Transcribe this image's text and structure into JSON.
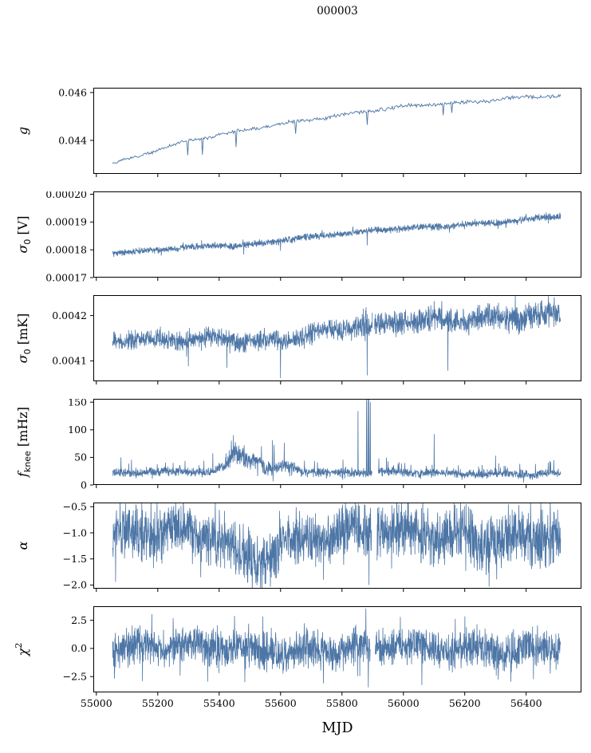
{
  "title": "000003",
  "chart_data": {
    "type": "line",
    "title": "000003",
    "xlabel": "MJD",
    "grid": false,
    "legend": "none",
    "line_color": "#4d76a6",
    "axis_color": "#000000",
    "background": "#ffffff",
    "x_range": [
      54990,
      56580
    ],
    "x_data_range": [
      55053,
      56512
    ],
    "x_ticks": {
      "values": [
        55000,
        55200,
        55400,
        55600,
        55800,
        56000,
        56200,
        56400
      ],
      "labels": [
        "55000",
        "55200",
        "55400",
        "55600",
        "55800",
        "56000",
        "56200",
        "56400"
      ]
    },
    "panels": [
      {
        "name": "g",
        "ylabel": [
          {
            "t": "g",
            "i": 1
          }
        ],
        "ylabel_text": "g",
        "style": "line",
        "seed": 11,
        "ylim": [
          0.0426,
          0.0462
        ],
        "yticks": {
          "values": [
            0.044,
            0.046
          ],
          "labels": [
            "0.044",
            "0.046"
          ]
        },
        "noise": 7e-05,
        "center": [
          [
            55053,
            0.043
          ],
          [
            55120,
            0.04325
          ],
          [
            55200,
            0.0436
          ],
          [
            55300,
            0.04395
          ],
          [
            55400,
            0.04425
          ],
          [
            55500,
            0.0445
          ],
          [
            55600,
            0.04471
          ],
          [
            55700,
            0.04488
          ],
          [
            55800,
            0.04504
          ],
          [
            55900,
            0.04522
          ],
          [
            56000,
            0.0454
          ],
          [
            56100,
            0.04552
          ],
          [
            56200,
            0.04561
          ],
          [
            56300,
            0.04572
          ],
          [
            56400,
            0.04582
          ],
          [
            56512,
            0.04585
          ]
        ],
        "spread": [
          [
            55053,
            7e-05
          ],
          [
            56512,
            7e-05
          ]
        ],
        "spikes": [
          [
            55298,
            0.04338
          ],
          [
            55345,
            0.0434
          ],
          [
            55455,
            0.04372
          ],
          [
            55648,
            0.04428
          ],
          [
            55882,
            0.04465
          ],
          [
            56130,
            0.04505
          ],
          [
            56158,
            0.04515
          ]
        ],
        "gaps": []
      },
      {
        "name": "sigma0-V",
        "ylabel": [
          {
            "t": "σ",
            "i": 1
          },
          {
            "t": "0",
            "sub": 1
          },
          {
            "t": " [V]"
          }
        ],
        "ylabel_text": "σ0 [V]",
        "style": "band",
        "seed": 22,
        "ylim": [
          0.00017,
          0.000201
        ],
        "yticks": {
          "values": [
            0.00017,
            0.00018,
            0.00019,
            0.0002
          ],
          "labels": [
            "0.00017",
            "0.00018",
            "0.00019",
            "0.00020"
          ]
        },
        "center": [
          [
            55053,
            0.0001786
          ],
          [
            55150,
            0.0001794
          ],
          [
            55250,
            0.0001803
          ],
          [
            55350,
            0.0001812
          ],
          [
            55418,
            0.0001818
          ],
          [
            55435,
            0.0001811
          ],
          [
            55500,
            0.000182
          ],
          [
            55560,
            0.0001829
          ],
          [
            55620,
            0.0001838
          ],
          [
            55680,
            0.0001845
          ],
          [
            55740,
            0.0001852
          ],
          [
            55800,
            0.0001857
          ],
          [
            55860,
            0.0001862
          ],
          [
            55900,
            0.0001868
          ],
          [
            55960,
            0.0001872
          ],
          [
            56020,
            0.0001877
          ],
          [
            56080,
            0.0001882
          ],
          [
            56140,
            0.0001886
          ],
          [
            56200,
            0.0001892
          ],
          [
            56260,
            0.0001897
          ],
          [
            56320,
            0.0001902
          ],
          [
            56380,
            0.0001908
          ],
          [
            56440,
            0.0001914
          ],
          [
            56512,
            0.0001921
          ]
        ],
        "spread": [
          [
            55053,
            1.2e-06
          ],
          [
            56512,
            1.3e-06
          ]
        ],
        "spikes": [
          [
            55480,
            0.0001783
          ],
          [
            55600,
            0.0001797
          ],
          [
            55882,
            0.0001816
          ],
          [
            56150,
            0.0001862
          ]
        ],
        "gaps": []
      },
      {
        "name": "sigma0-mK",
        "ylabel": [
          {
            "t": "σ",
            "i": 1
          },
          {
            "t": "0",
            "sub": 1
          },
          {
            "t": " [mK]"
          }
        ],
        "ylabel_text": "σ0 [mK]",
        "style": "band",
        "seed": 33,
        "ylim": [
          0.004055,
          0.004245
        ],
        "yticks": {
          "values": [
            0.0041,
            0.0042
          ],
          "labels": [
            "0.0041",
            "0.0042"
          ]
        },
        "center": [
          [
            55053,
            0.004145
          ],
          [
            55150,
            0.0041425
          ],
          [
            55250,
            0.004144
          ],
          [
            55330,
            0.0041455
          ],
          [
            55415,
            0.004152
          ],
          [
            55460,
            0.004145
          ],
          [
            55530,
            0.004146
          ],
          [
            55600,
            0.004148
          ],
          [
            55660,
            0.004156
          ],
          [
            55720,
            0.004165
          ],
          [
            55790,
            0.004171
          ],
          [
            55860,
            0.004173
          ],
          [
            55930,
            0.004178
          ],
          [
            56000,
            0.004184
          ],
          [
            56070,
            0.004187
          ],
          [
            56140,
            0.00419
          ],
          [
            56210,
            0.004195
          ],
          [
            56280,
            0.004198
          ],
          [
            56350,
            0.004201
          ],
          [
            56420,
            0.004203
          ],
          [
            56512,
            0.004202
          ]
        ],
        "spread": [
          [
            55053,
            2e-05
          ],
          [
            55600,
            2.2e-05
          ],
          [
            55900,
            2.6e-05
          ],
          [
            56200,
            3e-05
          ],
          [
            56512,
            3.2e-05
          ]
        ],
        "spikes": [
          [
            55300,
            0.004088
          ],
          [
            55425,
            0.004085
          ],
          [
            55600,
            0.004062
          ],
          [
            55882,
            0.004068
          ],
          [
            56100,
            0.004232
          ],
          [
            56145,
            0.004078
          ],
          [
            56310,
            0.004228
          ]
        ],
        "gaps": [
          [
            55899,
            55906
          ]
        ]
      },
      {
        "name": "fknee",
        "ylabel": [
          {
            "t": "f",
            "i": 1
          },
          {
            "t": "knee",
            "sub": 1
          },
          {
            "t": " [mHz]"
          }
        ],
        "ylabel_text": "fknee [mHz]",
        "style": "band",
        "skew_up": true,
        "seed": 44,
        "ylim": [
          0,
          156
        ],
        "yticks": {
          "values": [
            0,
            50,
            100,
            150
          ],
          "labels": [
            "0",
            "50",
            "100",
            "150"
          ]
        },
        "center": [
          [
            55053,
            22
          ],
          [
            55380,
            23
          ],
          [
            55415,
            32
          ],
          [
            55445,
            52
          ],
          [
            55465,
            58
          ],
          [
            55495,
            50
          ],
          [
            55525,
            45
          ],
          [
            55555,
            32
          ],
          [
            55585,
            29
          ],
          [
            55605,
            37
          ],
          [
            55635,
            33
          ],
          [
            55670,
            26
          ],
          [
            55750,
            22
          ],
          [
            56512,
            21
          ]
        ],
        "spread": [
          [
            55053,
            8
          ],
          [
            55395,
            9
          ],
          [
            55430,
            16
          ],
          [
            55470,
            19
          ],
          [
            55540,
            15
          ],
          [
            55600,
            15
          ],
          [
            55650,
            10
          ],
          [
            55700,
            8
          ],
          [
            56512,
            8
          ]
        ],
        "spikes": [
          [
            55080,
            50
          ],
          [
            55250,
            40
          ],
          [
            55350,
            44
          ],
          [
            55852,
            134
          ],
          [
            55880,
            158
          ],
          [
            55884,
            160
          ],
          [
            55888,
            158
          ],
          [
            55892,
            150
          ],
          [
            55950,
            43
          ],
          [
            56005,
            40
          ],
          [
            56100,
            92
          ],
          [
            56300,
            53
          ],
          [
            56430,
            38
          ]
        ],
        "gaps": [
          [
            55898,
            55918
          ]
        ]
      },
      {
        "name": "alpha",
        "ylabel": [
          {
            "t": "α",
            "i": 1
          }
        ],
        "ylabel_text": "α",
        "style": "band",
        "seed": 55,
        "ylim": [
          -2.07,
          -0.42
        ],
        "yticks": {
          "values": [
            -2.0,
            -1.5,
            -1.0,
            -0.5
          ],
          "labels": [
            "−2.0",
            "−1.5",
            "−1.0",
            "−0.5"
          ]
        },
        "center": [
          [
            55053,
            -1.05
          ],
          [
            55340,
            -1.06
          ],
          [
            55420,
            -1.18
          ],
          [
            55465,
            -1.42
          ],
          [
            55540,
            -1.44
          ],
          [
            55580,
            -1.32
          ],
          [
            55620,
            -1.12
          ],
          [
            55670,
            -1.05
          ],
          [
            56512,
            -1.03
          ]
        ],
        "spread": [
          [
            55053,
            0.54
          ],
          [
            56512,
            0.54
          ]
        ],
        "spikes": [
          [
            55340,
            -1.85
          ],
          [
            55740,
            -1.9
          ],
          [
            55888,
            -2.0
          ]
        ],
        "gaps": [
          [
            55896,
            55914
          ]
        ]
      },
      {
        "name": "chi2",
        "ylabel": [
          {
            "t": "χ",
            "i": 1
          },
          {
            "t": "2",
            "sup": 1
          }
        ],
        "ylabel_text": "χ2",
        "style": "band",
        "seed": 66,
        "ylim": [
          -3.9,
          3.75
        ],
        "yticks": {
          "values": [
            -2.5,
            0.0,
            2.5
          ],
          "labels": [
            "−2.5",
            "0.0",
            "2.5"
          ]
        },
        "center": [
          [
            55053,
            0
          ],
          [
            56512,
            0
          ]
        ],
        "spread": [
          [
            55053,
            1.7
          ],
          [
            56512,
            1.7
          ]
        ],
        "spikes": [
          [
            55150,
            -2.9
          ],
          [
            55450,
            2.9
          ],
          [
            55740,
            -3.1
          ],
          [
            55878,
            3.55
          ],
          [
            55886,
            -3.45
          ],
          [
            55990,
            2.8
          ],
          [
            56060,
            -3.25
          ],
          [
            56200,
            2.85
          ],
          [
            56350,
            -2.95
          ]
        ],
        "gaps": [
          [
            55893,
            55908
          ]
        ]
      }
    ]
  }
}
